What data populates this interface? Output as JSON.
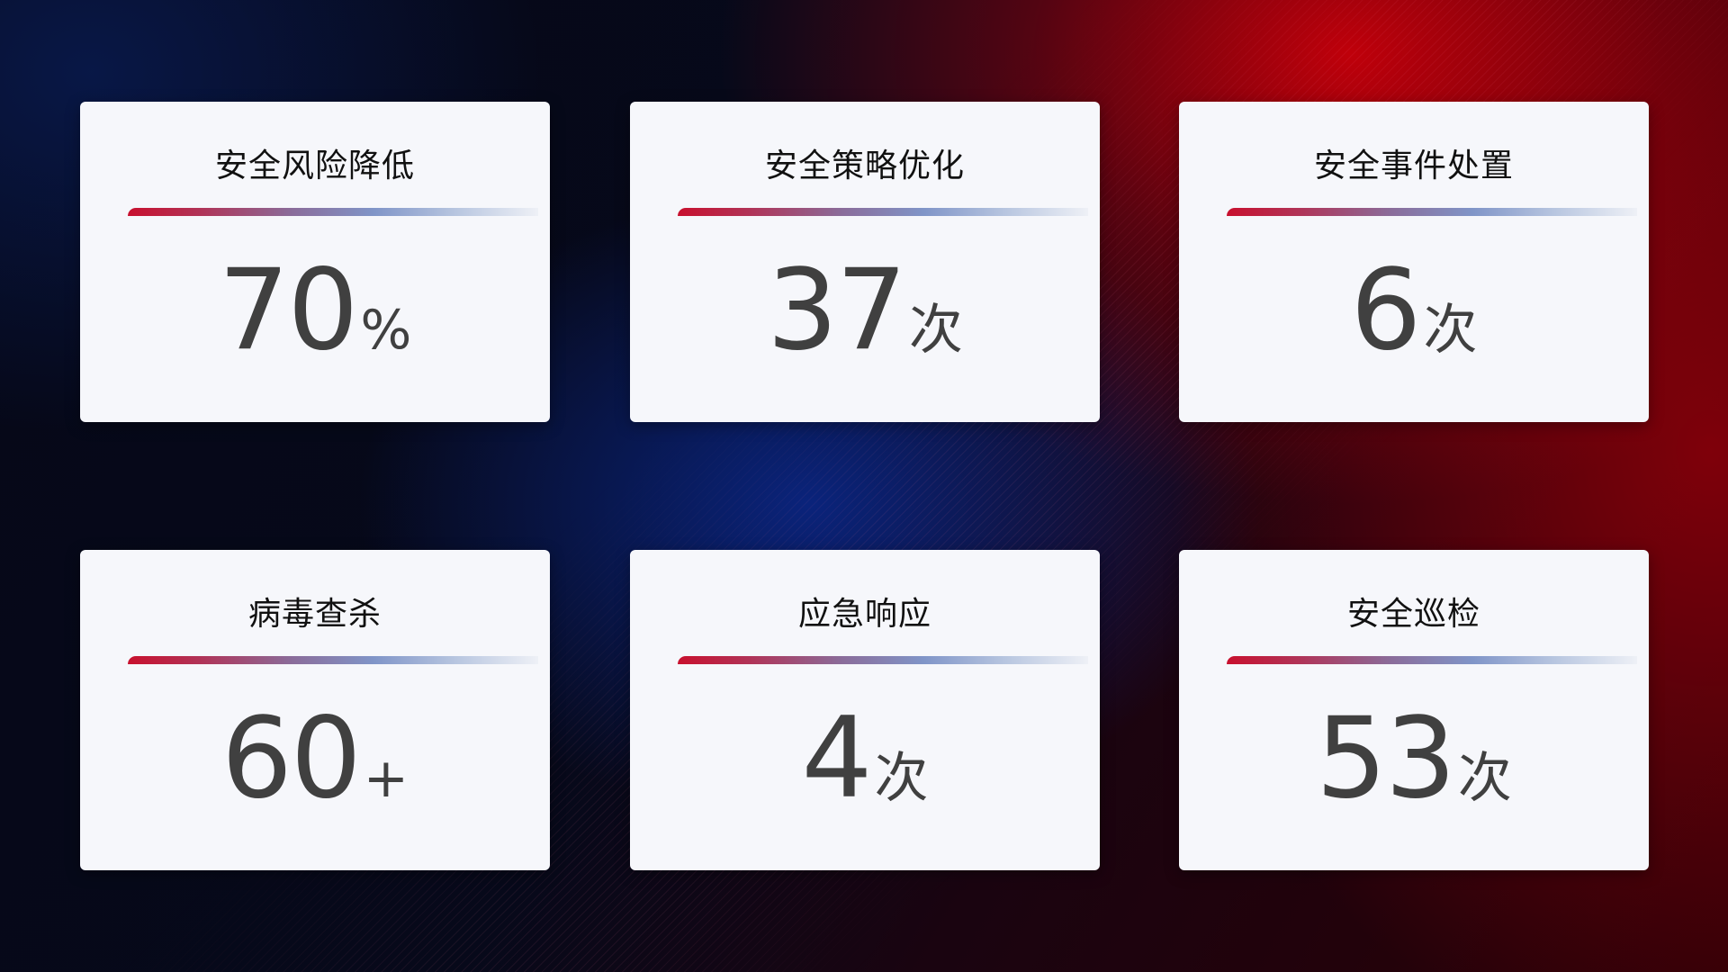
{
  "cards": [
    {
      "title": "安全风险降低",
      "value": "70",
      "unit": "%"
    },
    {
      "title": "安全策略优化",
      "value": "37",
      "unit": "次"
    },
    {
      "title": "安全事件处置",
      "value": "6",
      "unit": "次"
    },
    {
      "title": "病毒查杀",
      "value": "60",
      "unit": "+"
    },
    {
      "title": "应急响应",
      "value": "4",
      "unit": "次"
    },
    {
      "title": "安全巡检",
      "value": "53",
      "unit": "次"
    }
  ],
  "colors": {
    "accent_red": "#c8102e",
    "accent_blue": "#8095c8",
    "card_bg": "#f6f7fb",
    "value_text": "#404040"
  }
}
